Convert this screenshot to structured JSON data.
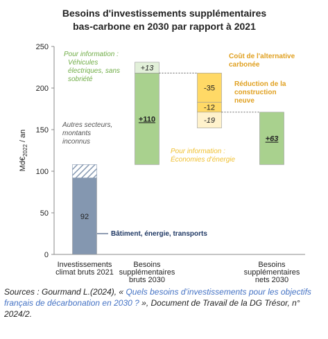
{
  "chart_data": {
    "type": "waterfall",
    "title": [
      "Besoins d'investissements supplémentaires",
      "bas-carbone en 2030 par rapport à 2021"
    ],
    "y_label": [
      "Md€",
      "2022",
      " / an"
    ],
    "ylim": [
      0,
      250
    ],
    "yticks": [
      0,
      50,
      100,
      150,
      200,
      250
    ],
    "bars": [
      {
        "category": [
          "Investissements",
          "climat bruts 2021"
        ],
        "segments": [
          {
            "value": 92,
            "value_label": "92",
            "color": "#8497b0"
          },
          {
            "value": 16,
            "color": "#8497b0",
            "pattern": "hatch"
          }
        ]
      },
      {
        "category": [
          "Besoins",
          "supplémentaires",
          "bruts 2030"
        ],
        "segments": [
          {
            "value": 110,
            "value_label": "+110",
            "color": "#a9d18e",
            "emphasis": true
          },
          {
            "value": 13,
            "value_label": "+13",
            "color": "#e2f0d9",
            "info": true
          }
        ]
      },
      {
        "category": null,
        "segments": [
          {
            "value": -35,
            "value_label": "-35",
            "color": "#ffd966"
          },
          {
            "value": -12,
            "value_label": "-12",
            "color": "#ffd966"
          },
          {
            "value": -19,
            "value_label": "-19",
            "color": "#fff2cc",
            "info": true
          }
        ]
      },
      {
        "category": [
          "Besoins",
          "supplémentaires",
          "nets 2030"
        ],
        "net": true,
        "segments": [
          {
            "value": 63,
            "value_label": "+63",
            "color": "#a9d18e",
            "emphasis": true
          }
        ]
      }
    ],
    "annotations": {
      "vehicles": [
        "Pour information :",
        "Véhicules",
        "électriques, sans",
        "sobriété"
      ],
      "others": [
        "Autres secteurs,",
        "montants",
        "inconnus"
      ],
      "building": "Bâtiment, énergie, transports",
      "carbon": [
        "Coût de l'alternative",
        "carbonée"
      ],
      "construction": [
        "Réduction de la",
        "construction",
        "neuve"
      ],
      "energy": [
        "Pour information :",
        "Économies d'énergie"
      ]
    },
    "source": {
      "before": "Sources : Gourmand L.(2024), « ",
      "link": "Quels besoins d’investissements pour les objectifs français de décarbonation en 2030 ?",
      "after": " », Document de Travail de la DG Trésor, n° 2024/2."
    }
  }
}
